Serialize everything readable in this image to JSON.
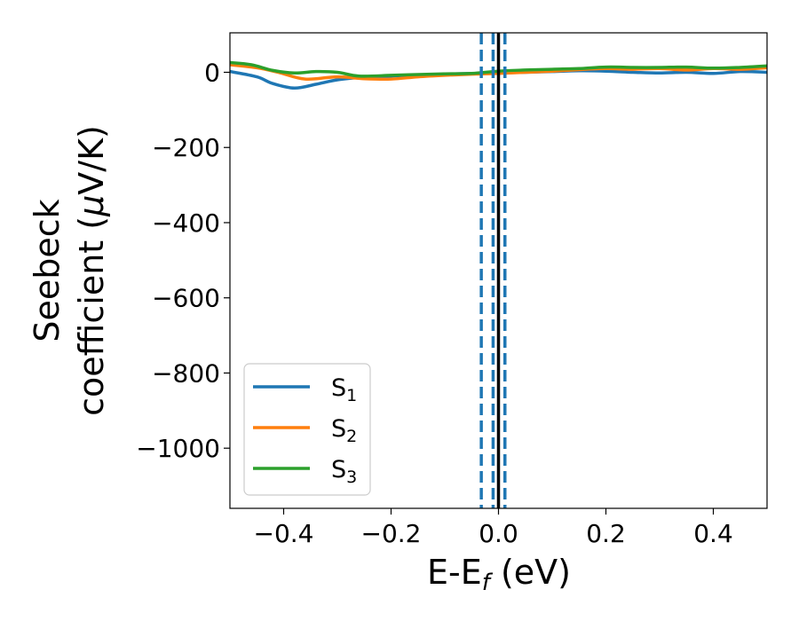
{
  "chart_data": {
    "type": "line",
    "xlabel": "E-E",
    "xlabel_subscript": "f",
    "xlabel_suffix": " (eV)",
    "ylabel_line1": "Seebeck",
    "ylabel_line2": "coefficient  (",
    "ylabel_mu": "μ",
    "ylabel_unit": "V/K)",
    "xlim": [
      -0.5,
      0.5
    ],
    "ylim": [
      -1160,
      105
    ],
    "xticks": [
      -0.4,
      -0.2,
      0.0,
      0.2,
      0.4
    ],
    "xtick_labels": [
      "−0.4",
      "−0.2",
      "0.0",
      "0.2",
      "0.4"
    ],
    "yticks": [
      0,
      -200,
      -400,
      -600,
      -800,
      -1000
    ],
    "ytick_labels": [
      "0",
      "−200",
      "−400",
      "−600",
      "−800",
      "−1000"
    ],
    "grid": false,
    "legend_position": "lower-left",
    "vlines": [
      {
        "x": 0.0,
        "style": "solid",
        "color": "#000000"
      },
      {
        "x": -0.032,
        "style": "dashed",
        "color": "#1f77b4"
      },
      {
        "x": -0.01,
        "style": "dashed",
        "color": "#1f77b4"
      },
      {
        "x": 0.012,
        "style": "dashed",
        "color": "#1f77b4"
      }
    ],
    "series": [
      {
        "name": "S",
        "subscript": "1",
        "color": "#1f77b4",
        "x": [
          -0.5,
          -0.45,
          -0.42,
          -0.38,
          -0.34,
          -0.3,
          -0.25,
          -0.2,
          -0.15,
          -0.1,
          -0.05,
          0.0,
          0.05,
          0.1,
          0.15,
          0.2,
          0.25,
          0.3,
          0.35,
          0.4,
          0.45,
          0.5
        ],
        "y": [
          2,
          -12,
          -30,
          -42,
          -32,
          -20,
          -13,
          -10,
          -7,
          -5,
          -3,
          -2,
          0,
          2,
          4,
          3,
          0,
          -2,
          0,
          -3,
          2,
          0
        ]
      },
      {
        "name": "S",
        "subscript": "2",
        "color": "#ff7f0e",
        "x": [
          -0.5,
          -0.45,
          -0.41,
          -0.36,
          -0.3,
          -0.25,
          -0.2,
          -0.15,
          -0.1,
          -0.05,
          0.0,
          0.05,
          0.1,
          0.15,
          0.2,
          0.25,
          0.3,
          0.35,
          0.4,
          0.45,
          0.5
        ],
        "y": [
          20,
          12,
          0,
          -18,
          -12,
          -17,
          -18,
          -12,
          -8,
          -5,
          -3,
          0,
          3,
          7,
          10,
          8,
          10,
          6,
          10,
          8,
          12
        ]
      },
      {
        "name": "S",
        "subscript": "3",
        "color": "#2ca02c",
        "x": [
          -0.5,
          -0.46,
          -0.42,
          -0.38,
          -0.34,
          -0.3,
          -0.26,
          -0.2,
          -0.15,
          -0.1,
          -0.05,
          0.0,
          0.05,
          0.1,
          0.15,
          0.2,
          0.25,
          0.3,
          0.35,
          0.4,
          0.45,
          0.5
        ],
        "y": [
          26,
          20,
          5,
          -2,
          2,
          0,
          -10,
          -8,
          -6,
          -4,
          -3,
          3,
          6,
          8,
          10,
          14,
          13,
          13,
          14,
          11,
          13,
          17
        ]
      }
    ]
  }
}
